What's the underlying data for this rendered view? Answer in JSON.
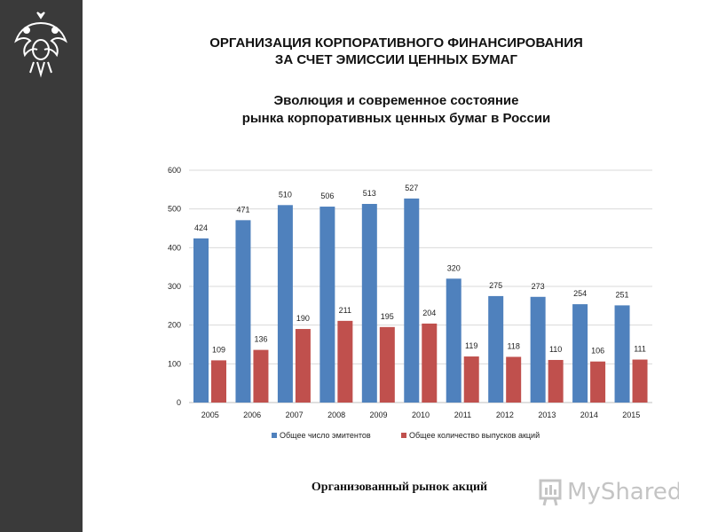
{
  "header": {
    "title_line1": "ОРГАНИЗАЦИЯ КОРПОРАТИВНОГО ФИНАНСИРОВАНИЯ",
    "title_line2": "ЗА СЧЕТ ЭМИССИИ ЦЕННЫХ БУМАГ",
    "subtitle_line1": "Эволюция и современное состояние",
    "subtitle_line2": "рынка корпоративных ценных бумаг в России"
  },
  "caption": "Организованный рынок акций",
  "logo": {
    "text": "MyShared",
    "icon": "myshared-logo-icon"
  },
  "emblem": {
    "icon": "double-headed-eagle-emblem-icon"
  },
  "colors": {
    "series1": "#4f81bd",
    "series2": "#c0504d",
    "grid": "#d9d9d9",
    "sidebar": "#3a3a3a"
  },
  "chart_data": {
    "type": "bar",
    "categories": [
      "2005",
      "2006",
      "2007",
      "2008",
      "2009",
      "2010",
      "2011",
      "2012",
      "2013",
      "2014",
      "2015"
    ],
    "series": [
      {
        "name": "Общее число эмитентов",
        "values": [
          424,
          471,
          510,
          506,
          513,
          527,
          320,
          275,
          273,
          254,
          251
        ]
      },
      {
        "name": "Общее количество выпусков акций",
        "values": [
          109,
          136,
          190,
          211,
          195,
          204,
          119,
          118,
          110,
          106,
          111
        ]
      }
    ],
    "ylim": [
      0,
      600
    ],
    "yticks": [
      0,
      100,
      200,
      300,
      400,
      500,
      600
    ],
    "grid": true,
    "legend": "bottom",
    "data_labels": true
  }
}
